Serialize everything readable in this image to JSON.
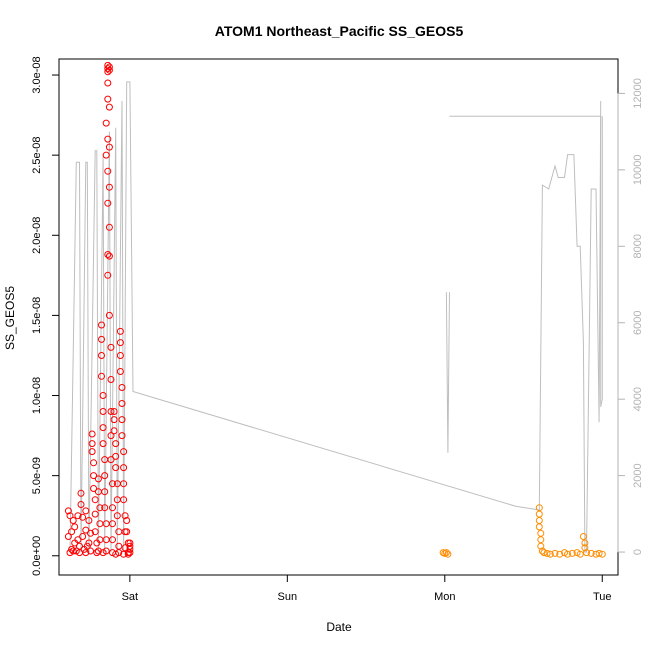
{
  "chart_data": {
    "type": "scatter",
    "title": "ATOM1 Northeast_Pacific SS_GEOS5",
    "xlabel": "Date",
    "ylabel": "SS_GEOS5",
    "x_ticks": [
      {
        "x": 1.0,
        "label": "Sat"
      },
      {
        "x": 2.0,
        "label": "Sun"
      },
      {
        "x": 3.0,
        "label": "Mon"
      },
      {
        "x": 4.0,
        "label": "Tue"
      }
    ],
    "x_unit": "days (Sat = 1)",
    "xlim": [
      0.55,
      4.1
    ],
    "y_ticks": [
      {
        "v": 0.0,
        "label": "0.0e+00"
      },
      {
        "v": 5e-09,
        "label": "5.0e-09"
      },
      {
        "v": 1e-08,
        "label": "1.0e-08"
      },
      {
        "v": 1.5e-08,
        "label": "1.5e-08"
      },
      {
        "v": 2e-08,
        "label": "2.0e-08"
      },
      {
        "v": 2.5e-08,
        "label": "2.5e-08"
      },
      {
        "v": 3e-08,
        "label": "3.0e-08"
      }
    ],
    "ylim": [
      -1.2e-09,
      3.1e-08
    ],
    "y2_ticks": [
      {
        "v": 0,
        "label": "0"
      },
      {
        "v": 2000,
        "label": "2000"
      },
      {
        "v": 4000,
        "label": "4000"
      },
      {
        "v": 6000,
        "label": "6000"
      },
      {
        "v": 8000,
        "label": "8000"
      },
      {
        "v": 10000,
        "label": "10000"
      },
      {
        "v": 12000,
        "label": "12000"
      }
    ],
    "y2lim": [
      -600,
      12900
    ],
    "series": [
      {
        "color": "#ff0000",
        "marker": "open-circle",
        "points": [
          [
            0.61,
            2.8e-09
          ],
          [
            0.61,
            1.2e-09
          ],
          [
            0.62,
            2e-10
          ],
          [
            0.62,
            2.5e-09
          ],
          [
            0.63,
            1.5e-09
          ],
          [
            0.63,
            4e-10
          ],
          [
            0.64,
            2.2e-09
          ],
          [
            0.65,
            8e-10
          ],
          [
            0.65,
            1.8e-09
          ],
          [
            0.66,
            3e-10
          ],
          [
            0.67,
            2.5e-09
          ],
          [
            0.67,
            1e-09
          ],
          [
            0.68,
            2e-10
          ],
          [
            0.69,
            3.9e-09
          ],
          [
            0.69,
            3.2e-09
          ],
          [
            0.7,
            2.4e-09
          ],
          [
            0.7,
            1.2e-09
          ],
          [
            0.71,
            4e-10
          ],
          [
            0.72,
            2.8e-09
          ],
          [
            0.72,
            1.6e-09
          ],
          [
            0.73,
            6e-10
          ],
          [
            0.74,
            2.2e-09
          ],
          [
            0.75,
            1.4e-09
          ],
          [
            0.75,
            3e-10
          ],
          [
            0.76,
            7.6e-09
          ],
          [
            0.76,
            7e-09
          ],
          [
            0.76,
            6.5e-09
          ],
          [
            0.77,
            5.8e-09
          ],
          [
            0.77,
            5e-09
          ],
          [
            0.77,
            4.2e-09
          ],
          [
            0.78,
            3.5e-09
          ],
          [
            0.78,
            2.6e-09
          ],
          [
            0.78,
            1.5e-09
          ],
          [
            0.79,
            8e-10
          ],
          [
            0.79,
            2e-10
          ],
          [
            0.8,
            4.8e-09
          ],
          [
            0.8,
            4e-09
          ],
          [
            0.81,
            3e-09
          ],
          [
            0.81,
            2e-09
          ],
          [
            0.81,
            1e-09
          ],
          [
            0.82,
            1.44e-08
          ],
          [
            0.82,
            1.35e-08
          ],
          [
            0.82,
            1.25e-08
          ],
          [
            0.82,
            1.12e-08
          ],
          [
            0.83,
            1e-08
          ],
          [
            0.83,
            9e-09
          ],
          [
            0.83,
            8e-09
          ],
          [
            0.83,
            7e-09
          ],
          [
            0.84,
            6e-09
          ],
          [
            0.84,
            5e-09
          ],
          [
            0.84,
            4e-09
          ],
          [
            0.84,
            3e-09
          ],
          [
            0.85,
            2e-09
          ],
          [
            0.85,
            1e-09
          ],
          [
            0.85,
            3e-10
          ],
          [
            0.85,
            2.5e-08
          ],
          [
            0.85,
            2.7e-08
          ],
          [
            0.86,
            2.95e-08
          ],
          [
            0.86,
            3.06e-08
          ],
          [
            0.86,
            3.04e-08
          ],
          [
            0.86,
            3.02e-08
          ],
          [
            0.86,
            2.85e-08
          ],
          [
            0.86,
            2.6e-08
          ],
          [
            0.86,
            2.4e-08
          ],
          [
            0.86,
            2.2e-08
          ],
          [
            0.86,
            1.88e-08
          ],
          [
            0.86,
            1.75e-08
          ],
          [
            0.87,
            3.05e-08
          ],
          [
            0.87,
            3.03e-08
          ],
          [
            0.87,
            2.8e-08
          ],
          [
            0.87,
            2.55e-08
          ],
          [
            0.87,
            2.3e-08
          ],
          [
            0.87,
            2.05e-08
          ],
          [
            0.87,
            1.87e-08
          ],
          [
            0.87,
            1.5e-08
          ],
          [
            0.88,
            1.3e-08
          ],
          [
            0.88,
            1.1e-08
          ],
          [
            0.88,
            9e-09
          ],
          [
            0.88,
            7.5e-09
          ],
          [
            0.88,
            6e-09
          ],
          [
            0.89,
            4.5e-09
          ],
          [
            0.89,
            3e-09
          ],
          [
            0.89,
            2e-09
          ],
          [
            0.89,
            1e-09
          ],
          [
            0.9,
            9e-09
          ],
          [
            0.9,
            8.5e-09
          ],
          [
            0.9,
            7.8e-09
          ],
          [
            0.91,
            7e-09
          ],
          [
            0.91,
            6.2e-09
          ],
          [
            0.91,
            5.5e-09
          ],
          [
            0.92,
            4.5e-09
          ],
          [
            0.92,
            3.5e-09
          ],
          [
            0.92,
            2.5e-09
          ],
          [
            0.93,
            1.5e-09
          ],
          [
            0.93,
            6e-10
          ],
          [
            0.94,
            1.4e-08
          ],
          [
            0.94,
            1.33e-08
          ],
          [
            0.94,
            1.25e-08
          ],
          [
            0.94,
            1.15e-08
          ],
          [
            0.95,
            1.05e-08
          ],
          [
            0.95,
            9.5e-09
          ],
          [
            0.95,
            8.5e-09
          ],
          [
            0.95,
            7.5e-09
          ],
          [
            0.96,
            6.5e-09
          ],
          [
            0.96,
            5.5e-09
          ],
          [
            0.96,
            4.5e-09
          ],
          [
            0.96,
            3.5e-09
          ],
          [
            0.97,
            2.5e-09
          ],
          [
            0.97,
            1.5e-09
          ],
          [
            0.97,
            5e-10
          ],
          [
            0.98,
            2.2e-09
          ],
          [
            0.98,
            1.5e-09
          ],
          [
            0.99,
            8e-10
          ],
          [
            0.99,
            2e-10
          ],
          [
            0.64,
            3e-10
          ],
          [
            0.68,
            6e-10
          ],
          [
            0.72,
            2e-10
          ],
          [
            0.74,
            8e-10
          ],
          [
            0.8,
            3e-10
          ],
          [
            0.83,
            2e-10
          ],
          [
            0.89,
            2e-10
          ],
          [
            0.91,
            1e-10
          ],
          [
            0.93,
            2e-10
          ],
          [
            0.96,
            1e-10
          ],
          [
            0.99,
            1e-10
          ],
          [
            1.0,
            8e-10
          ],
          [
            1.0,
            6e-10
          ],
          [
            1.0,
            4e-10
          ],
          [
            1.0,
            2e-10
          ]
        ]
      },
      {
        "color": "#ff8c00",
        "marker": "open-circle",
        "points": [
          [
            2.99,
            2e-10
          ],
          [
            3.0,
            1.5e-10
          ],
          [
            3.01,
            2e-10
          ],
          [
            3.02,
            1e-10
          ],
          [
            3.6,
            3e-09
          ],
          [
            3.6,
            2.6e-09
          ],
          [
            3.6,
            2.2e-09
          ],
          [
            3.6,
            1.8e-09
          ],
          [
            3.61,
            1.4e-09
          ],
          [
            3.61,
            1e-09
          ],
          [
            3.61,
            6e-10
          ],
          [
            3.62,
            3e-10
          ],
          [
            3.63,
            2e-10
          ],
          [
            3.65,
            1.5e-10
          ],
          [
            3.67,
            1e-10
          ],
          [
            3.7,
            1.5e-10
          ],
          [
            3.73,
            1e-10
          ],
          [
            3.76,
            2e-10
          ],
          [
            3.78,
            1e-10
          ],
          [
            3.81,
            1.5e-10
          ],
          [
            3.84,
            2e-10
          ],
          [
            3.86,
            1e-10
          ],
          [
            3.88,
            1.2e-09
          ],
          [
            3.89,
            8e-10
          ],
          [
            3.89,
            5e-10
          ],
          [
            3.9,
            2e-10
          ],
          [
            3.93,
            1.5e-10
          ],
          [
            3.96,
            1e-10
          ],
          [
            3.98,
            1.5e-10
          ],
          [
            4.0,
            1e-10
          ]
        ]
      }
    ],
    "line_series": {
      "color": "#bebebe",
      "axis": "right",
      "points": [
        [
          0.62,
          0
        ],
        [
          0.66,
          10200
        ],
        [
          0.68,
          10200
        ],
        [
          0.69,
          0
        ],
        [
          0.72,
          10200
        ],
        [
          0.73,
          10200
        ],
        [
          0.74,
          0
        ],
        [
          0.78,
          10500
        ],
        [
          0.79,
          10500
        ],
        [
          0.8,
          0
        ],
        [
          0.83,
          10400
        ],
        [
          0.84,
          0
        ],
        [
          0.87,
          11000
        ],
        [
          0.88,
          0
        ],
        [
          0.91,
          11100
        ],
        [
          0.92,
          0
        ],
        [
          0.95,
          11800
        ],
        [
          0.96,
          0
        ],
        [
          0.98,
          12300
        ],
        [
          1.0,
          12300
        ],
        [
          1.02,
          4200
        ],
        [
          3.45,
          1200
        ],
        [
          3.6,
          1100
        ],
        [
          3.62,
          9600
        ],
        [
          3.66,
          9500
        ],
        [
          3.7,
          10100
        ],
        [
          3.72,
          9800
        ],
        [
          3.76,
          9800
        ],
        [
          3.78,
          10400
        ],
        [
          3.82,
          10400
        ],
        [
          3.84,
          8000
        ],
        [
          3.86,
          8000
        ],
        [
          3.88,
          5500
        ],
        [
          3.89,
          0
        ],
        [
          3.9,
          0
        ],
        [
          3.93,
          9500
        ],
        [
          3.96,
          9500
        ],
        [
          3.98,
          3400
        ],
        [
          3.99,
          11800
        ]
      ],
      "extra_segments": [
        [
          [
            3.01,
            6800
          ],
          [
            3.02,
            2600
          ],
          [
            3.03,
            6800
          ]
        ],
        [
          [
            3.03,
            11400
          ],
          [
            3.99,
            11400
          ],
          [
            3.99,
            3800
          ],
          [
            4.0,
            4000
          ],
          [
            4.0,
            11400
          ]
        ]
      ]
    }
  }
}
